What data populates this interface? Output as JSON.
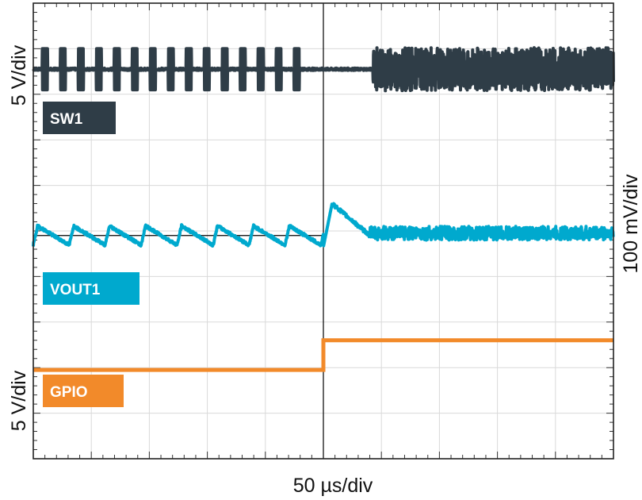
{
  "chart_data": {
    "type": "line",
    "title": "",
    "xlabel": "50 µs/div",
    "ylabel_left_top": "5 V/div",
    "ylabel_right": "100 mV/div",
    "ylabel_left_bottom": "5 V/div",
    "divisions": {
      "x": 10,
      "y": 10
    },
    "grid": true,
    "trigger_x_div": 5,
    "series": [
      {
        "name": "SW1",
        "color": "#2f3d47",
        "baseline_div": 8.55,
        "pulse_count_before_trigger": 15,
        "pulse_start_div": 0.2,
        "pulse_interval_div": 0.31,
        "pulse_amplitude_div": 0.45,
        "continuous_switching_from_div": 5.85
      },
      {
        "name": "VOUT1",
        "color": "#00a9ce",
        "baseline_div": 4.9,
        "ripple_period_div": 0.62,
        "ripple_amplitude_div": 0.6,
        "overshoot_at_div": 5.15,
        "overshoot_peak_div": 5.6,
        "settle_at_div": 5.8,
        "noise_band_div": 0.3
      },
      {
        "name": "GPIO",
        "color": "#f28a2a",
        "low_level_div": 1.95,
        "high_level_div": 2.6,
        "step_at_div": 5
      }
    ]
  }
}
